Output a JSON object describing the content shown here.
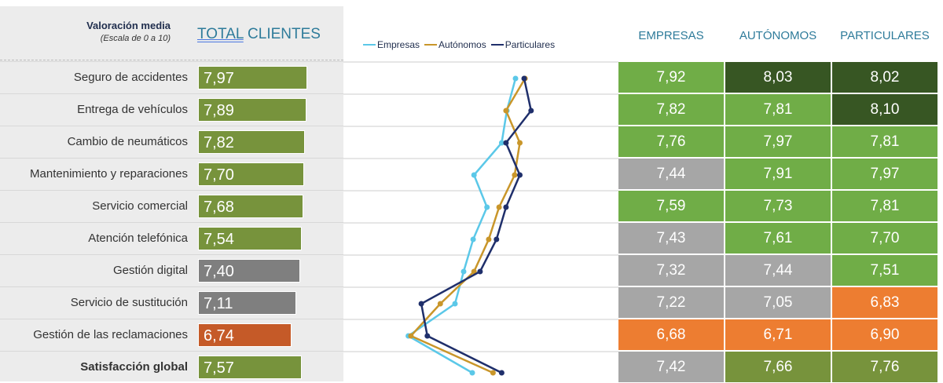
{
  "header": {
    "title": "Valoración media",
    "subtitle": "(Escala de 0 a 10)",
    "total_prefix": "TOTAL",
    "total_suffix": " CLIENTES"
  },
  "columns": [
    "EMPRESAS",
    "AUTÓNOMOS",
    "PARTICULARES"
  ],
  "colors": {
    "olive": "#77933c",
    "gray_bar": "#7f7f7f",
    "red": "#c55a28",
    "lightgreen": "#70ad47",
    "darkgreen": "#375623",
    "gray": "#a6a6a6",
    "orange": "#ed7d31"
  },
  "rows": [
    {
      "label": "Seguro de accidentes",
      "total": "7,97",
      "t": "olive",
      "values": [
        "7,92",
        "8,03",
        "8,02"
      ],
      "c": [
        "lightgreen",
        "darkgreen",
        "darkgreen"
      ]
    },
    {
      "label": "Entrega de vehículos",
      "total": "7,89",
      "t": "olive",
      "values": [
        "7,82",
        "7,81",
        "8,10"
      ],
      "c": [
        "lightgreen",
        "lightgreen",
        "darkgreen"
      ]
    },
    {
      "label": "Cambio de neumáticos",
      "total": "7,82",
      "t": "olive",
      "values": [
        "7,76",
        "7,97",
        "7,81"
      ],
      "c": [
        "lightgreen",
        "lightgreen",
        "lightgreen"
      ]
    },
    {
      "label": "Mantenimiento y reparaciones",
      "total": "7,70",
      "t": "olive",
      "values": [
        "7,44",
        "7,91",
        "7,97"
      ],
      "c": [
        "gray",
        "lightgreen",
        "lightgreen"
      ]
    },
    {
      "label": "Servicio comercial",
      "total": "7,68",
      "t": "olive",
      "values": [
        "7,59",
        "7,73",
        "7,81"
      ],
      "c": [
        "lightgreen",
        "lightgreen",
        "lightgreen"
      ]
    },
    {
      "label": "Atención telefónica",
      "total": "7,54",
      "t": "olive",
      "values": [
        "7,43",
        "7,61",
        "7,70"
      ],
      "c": [
        "gray",
        "lightgreen",
        "lightgreen"
      ]
    },
    {
      "label": "Gestión digital",
      "total": "7,40",
      "t": "gray_bar",
      "values": [
        "7,32",
        "7,44",
        "7,51"
      ],
      "c": [
        "gray",
        "gray",
        "lightgreen"
      ]
    },
    {
      "label": "Servicio de sustitución",
      "total": "7,11",
      "t": "gray_bar",
      "values": [
        "7,22",
        "7,05",
        "6,83"
      ],
      "c": [
        "gray",
        "gray",
        "orange"
      ]
    },
    {
      "label": "Gestión de las reclamaciones",
      "total": "6,74",
      "t": "red",
      "values": [
        "6,68",
        "6,71",
        "6,90"
      ],
      "c": [
        "orange",
        "orange",
        "orange"
      ]
    },
    {
      "label": "Satisfacción global",
      "total": "7,57",
      "t": "olive",
      "values": [
        "7,42",
        "7,66",
        "7,76"
      ],
      "c": [
        "gray",
        "olive",
        "olive"
      ],
      "bold": true
    }
  ],
  "chart_data": {
    "type": "line",
    "orientation": "horizontal",
    "categories": [
      "Seguro de accidentes",
      "Entrega de vehículos",
      "Cambio de neumáticos",
      "Mantenimiento y reparaciones",
      "Servicio comercial",
      "Atención telefónica",
      "Gestión digital",
      "Servicio de sustitución",
      "Gestión de las reclamaciones",
      "Satisfacción global"
    ],
    "series": [
      {
        "name": "Empresas",
        "color": "#5bc8e8",
        "values": [
          7.92,
          7.82,
          7.76,
          7.44,
          7.59,
          7.43,
          7.32,
          7.22,
          6.68,
          7.42
        ]
      },
      {
        "name": "Autónomos",
        "color": "#c9962a",
        "values": [
          8.03,
          7.81,
          7.97,
          7.91,
          7.73,
          7.61,
          7.44,
          7.05,
          6.71,
          7.66
        ]
      },
      {
        "name": "Particulares",
        "color": "#1f2f6b",
        "values": [
          8.02,
          8.1,
          7.81,
          7.97,
          7.81,
          7.7,
          7.51,
          6.83,
          6.9,
          7.76
        ]
      }
    ]
  }
}
